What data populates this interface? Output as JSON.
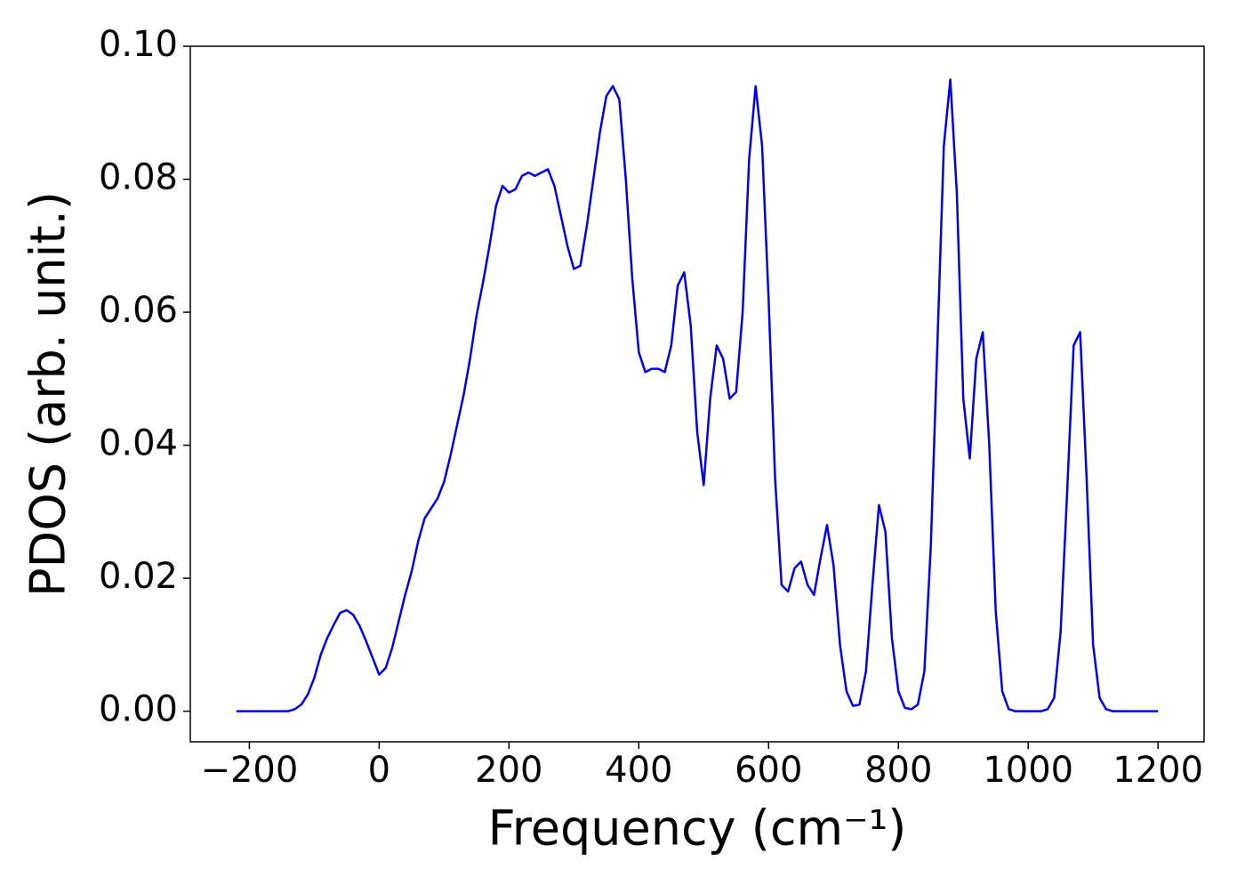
{
  "chart_data": {
    "type": "line",
    "xlabel": "Frequency (cm⁻¹)",
    "ylabel": "PDOS (arb. unit.)",
    "x": [
      -220,
      -210,
      -200,
      -190,
      -180,
      -170,
      -160,
      -150,
      -140,
      -130,
      -120,
      -110,
      -100,
      -90,
      -80,
      -70,
      -60,
      -50,
      -40,
      -30,
      -20,
      -10,
      0,
      10,
      20,
      30,
      40,
      50,
      60,
      70,
      80,
      90,
      100,
      110,
      120,
      130,
      140,
      150,
      160,
      170,
      180,
      190,
      200,
      210,
      220,
      230,
      240,
      250,
      260,
      270,
      280,
      290,
      300,
      310,
      320,
      330,
      340,
      350,
      360,
      370,
      380,
      390,
      400,
      410,
      420,
      430,
      440,
      450,
      460,
      470,
      480,
      490,
      500,
      510,
      520,
      530,
      540,
      550,
      560,
      570,
      580,
      590,
      600,
      610,
      620,
      630,
      640,
      650,
      660,
      670,
      680,
      690,
      700,
      710,
      720,
      730,
      740,
      750,
      760,
      770,
      780,
      790,
      800,
      810,
      820,
      830,
      840,
      850,
      860,
      870,
      880,
      890,
      900,
      910,
      920,
      930,
      940,
      950,
      960,
      970,
      980,
      990,
      1000,
      1010,
      1020,
      1030,
      1040,
      1050,
      1060,
      1070,
      1080,
      1090,
      1100,
      1110,
      1120,
      1130,
      1140,
      1150,
      1160,
      1170,
      1180,
      1190,
      1200
    ],
    "series": [
      {
        "name": "PDOS",
        "color": "#0000ee",
        "values": [
          0,
          0,
          0,
          0,
          0,
          0,
          0,
          0,
          0,
          0.0003,
          0.001,
          0.0025,
          0.005,
          0.0085,
          0.011,
          0.013,
          0.0148,
          0.0152,
          0.0145,
          0.0128,
          0.0105,
          0.008,
          0.0055,
          0.0065,
          0.0095,
          0.0135,
          0.0175,
          0.021,
          0.0255,
          0.029,
          0.0305,
          0.032,
          0.0345,
          0.0385,
          0.043,
          0.0475,
          0.053,
          0.0595,
          0.0645,
          0.07,
          0.076,
          0.079,
          0.078,
          0.0785,
          0.0805,
          0.081,
          0.0805,
          0.081,
          0.0815,
          0.079,
          0.0745,
          0.07,
          0.0665,
          0.067,
          0.073,
          0.08,
          0.087,
          0.0925,
          0.094,
          0.092,
          0.08,
          0.065,
          0.054,
          0.051,
          0.0515,
          0.0515,
          0.051,
          0.055,
          0.064,
          0.066,
          0.058,
          0.042,
          0.034,
          0.047,
          0.055,
          0.053,
          0.047,
          0.048,
          0.06,
          0.083,
          0.094,
          0.085,
          0.062,
          0.035,
          0.019,
          0.018,
          0.0215,
          0.0225,
          0.019,
          0.0175,
          0.023,
          0.028,
          0.022,
          0.01,
          0.003,
          0.0008,
          0.001,
          0.006,
          0.019,
          0.031,
          0.027,
          0.011,
          0.003,
          0.0005,
          0.0003,
          0.001,
          0.006,
          0.025,
          0.055,
          0.085,
          0.095,
          0.078,
          0.047,
          0.038,
          0.053,
          0.057,
          0.04,
          0.015,
          0.003,
          0.0003,
          0,
          0,
          0,
          0,
          0,
          0.0003,
          0.002,
          0.012,
          0.033,
          0.055,
          0.057,
          0.035,
          0.01,
          0.002,
          0.0003,
          0,
          0,
          0,
          0,
          0,
          0,
          0,
          0
        ]
      }
    ],
    "xlim": [
      -291,
      1271
    ],
    "ylim": [
      -0.0046,
      0.1
    ],
    "xticks": [
      {
        "value": -200,
        "label": "−200"
      },
      0,
      200,
      400,
      600,
      800,
      1000,
      1200
    ],
    "yticks": [
      {
        "value": 0,
        "label": "0.00"
      },
      {
        "value": 0.02,
        "label": "0.02"
      },
      {
        "value": 0.04,
        "label": "0.04"
      },
      {
        "value": 0.06,
        "label": "0.06"
      },
      {
        "value": 0.08,
        "label": "0.08"
      },
      {
        "value": 0.1,
        "label": "0.10"
      }
    ]
  }
}
